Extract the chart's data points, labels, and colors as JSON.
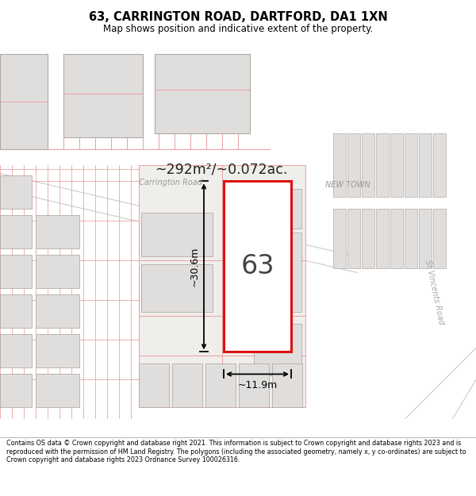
{
  "title": "63, CARRINGTON ROAD, DARTFORD, DA1 1XN",
  "subtitle": "Map shows position and indicative extent of the property.",
  "footer": "Contains OS data © Crown copyright and database right 2021. This information is subject to Crown copyright and database rights 2023 and is reproduced with the permission of HM Land Registry. The polygons (including the associated geometry, namely x, y co-ordinates) are subject to Crown copyright and database rights 2023 Ordnance Survey 100026316.",
  "map_bg": "#f7f5f2",
  "road_fill": "#ffffff",
  "plot_line": "#e8a0a0",
  "plot_line_lw": 0.7,
  "building_fill": "#e0dedd",
  "building_edge": "#b0a8a0",
  "building_edge_lw": 0.8,
  "highlight_fill": "#ffffff",
  "highlight_edge": "#dd1111",
  "highlight_lw": 2.2,
  "area_text": "~292m²/~0.072ac.",
  "property_number": "63",
  "width_label": "~11.9m",
  "height_label": "~30.6m",
  "road_label_carrington": "Carrington Road",
  "road_label_newtown": "NEW TOWN",
  "road_label_vincents": "St Vincents Road"
}
